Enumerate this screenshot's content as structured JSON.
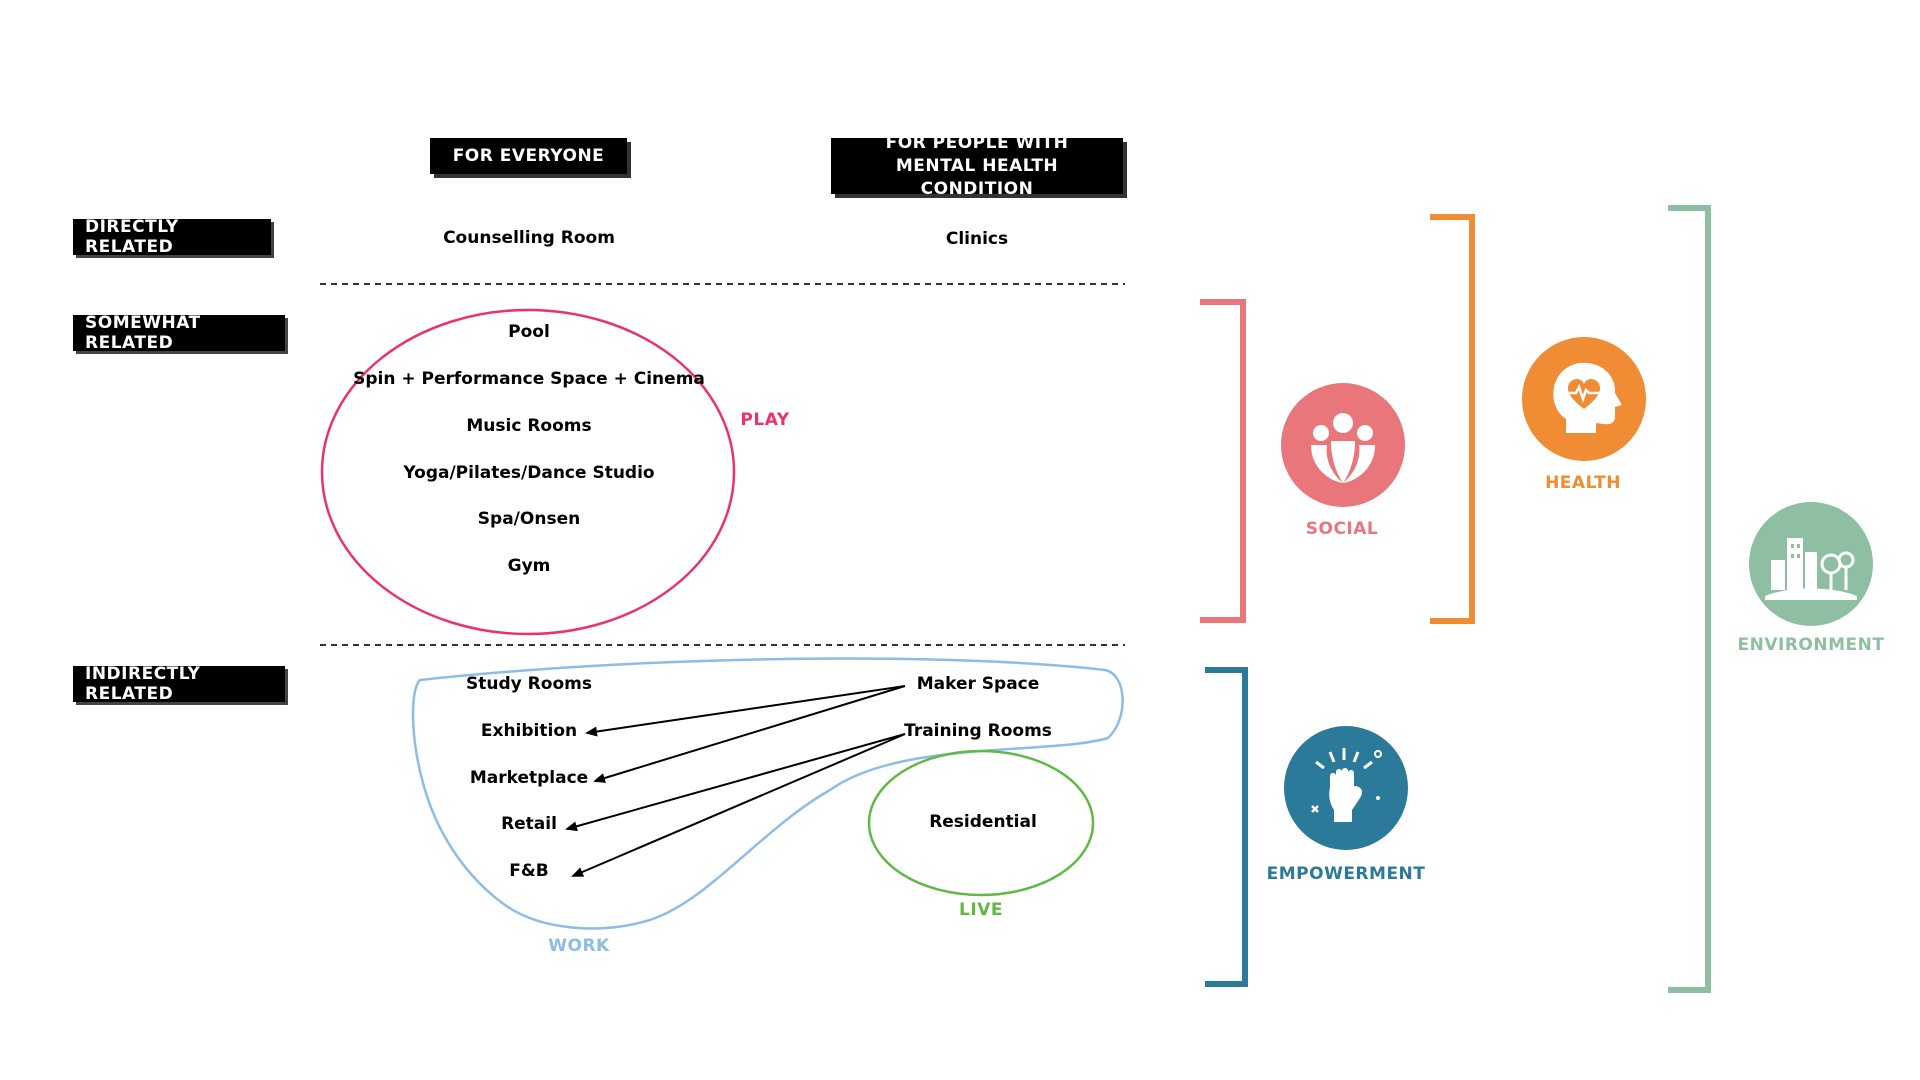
{
  "headers": {
    "for_everyone": "FOR EVERYONE",
    "for_mental": "FOR PEOPLE WITH MENTAL HEALTH CONDITION"
  },
  "rows": {
    "direct": "DIRECTLY RELATED",
    "somewhat": "SOMEWHAT RELATED",
    "indirect": "INDIRECTLY RELATED"
  },
  "direct_items": {
    "counselling": "Counselling Room",
    "clinics": "Clinics"
  },
  "play_items": [
    "Pool",
    "Spin + Performance Space + Cinema",
    "Music Rooms",
    "Yoga/Pilates/Dance Studio",
    "Spa/Onsen",
    "Gym"
  ],
  "work_items": [
    "Study Rooms",
    "Exhibition",
    "Marketplace",
    "Retail",
    "F&B"
  ],
  "work_sources": {
    "maker": "Maker Space",
    "training": "Training Rooms"
  },
  "live_item": "Residential",
  "groups": {
    "play": "PLAY",
    "work": "WORK",
    "live": "LIVE"
  },
  "categories": {
    "social": "SOCIAL",
    "health": "HEALTH",
    "environment": "ENVIRONMENT",
    "empowerment": "EMPOWERMENT"
  },
  "colors": {
    "play": "#e8336e",
    "work": "#8dbde4",
    "live": "#5fb944",
    "social": "#e8767a",
    "health": "#f08c34",
    "environment": "#8fbfa2",
    "empowerment": "#2b7a99"
  },
  "icons": {
    "social": "people-group-icon",
    "health": "head-heartbeat-icon",
    "environment": "city-trees-icon",
    "empowerment": "raised-fist-icon"
  }
}
